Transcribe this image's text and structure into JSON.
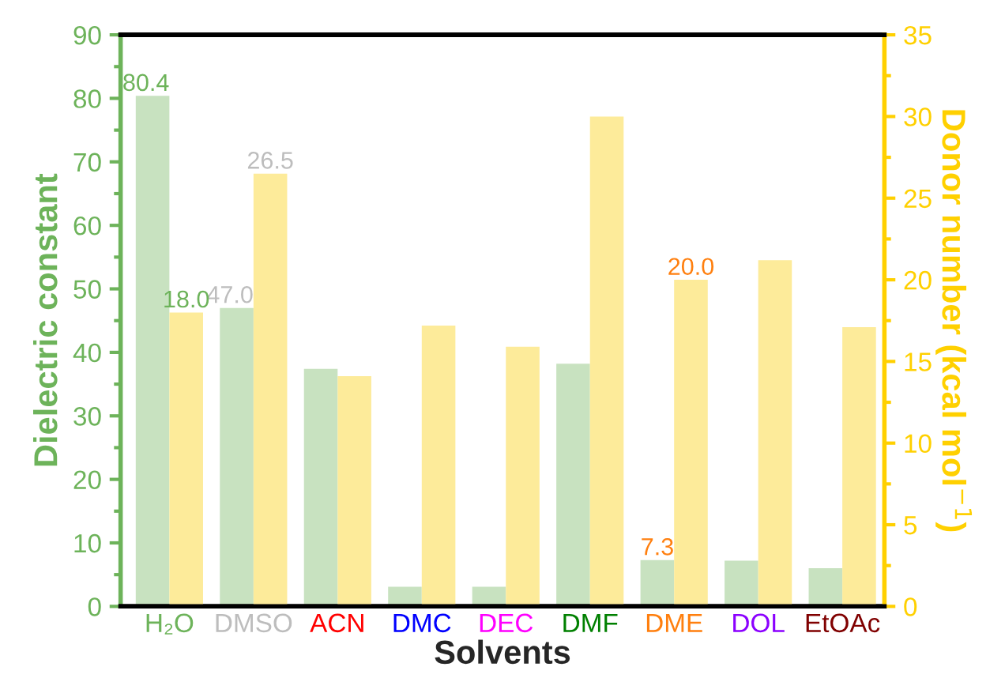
{
  "chart_data": {
    "type": "bar",
    "xlabel": "Solvents",
    "ylabel": "Dielectric constant",
    "y2label": "Donor number (kcal mol$^{−1}$)",
    "categories": [
      "H₂O",
      "DMSO",
      "ACN",
      "DMC",
      "DEC",
      "DMF",
      "DME",
      "DOL",
      "EtOAc"
    ],
    "series": [
      {
        "color": "#c8e2c0",
        "values": [
          80.4,
          47.0,
          37.4,
          3.1,
          3.1,
          38.2,
          7.3,
          7.2,
          6.0
        ],
        "value_labels": [
          "80.4",
          "47.0",
          null,
          null,
          null,
          null,
          "7.3",
          null,
          null
        ]
      },
      {
        "color": "#fdeb9a",
        "axis": "y2",
        "values": [
          18.0,
          26.5,
          14.1,
          17.2,
          15.9,
          30.0,
          20.0,
          21.2,
          17.1
        ],
        "value_labels": [
          "18.0",
          "26.5",
          null,
          null,
          null,
          null,
          "20.0",
          null,
          null
        ]
      }
    ],
    "ylim": [
      0,
      90
    ],
    "yticks": [
      0,
      10,
      20,
      30,
      40,
      50,
      60,
      70,
      80,
      90
    ],
    "y2lim": [
      0,
      35
    ],
    "y2ticks": [
      0,
      5,
      10,
      15,
      20,
      25,
      30,
      35
    ],
    "grid": false,
    "legend": false
  }
}
